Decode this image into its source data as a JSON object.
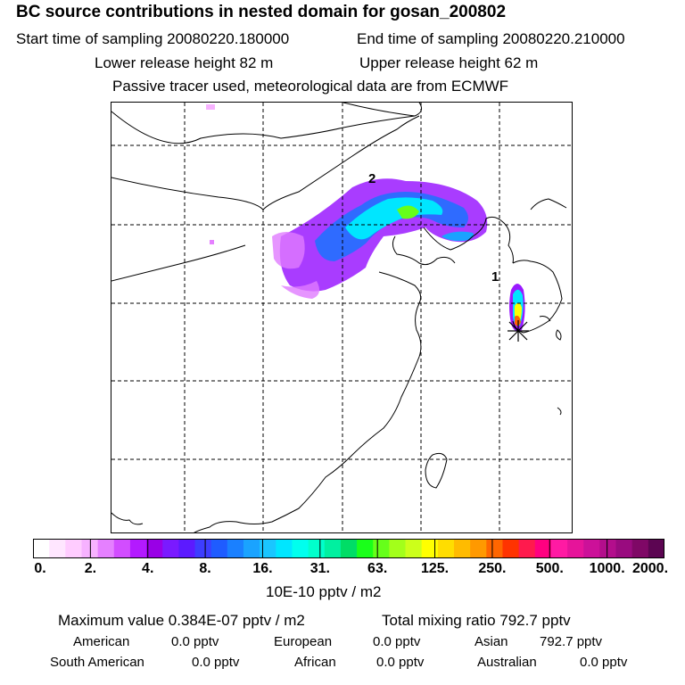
{
  "header": {
    "title": "BC  source contributions in nested domain for gosan_200802",
    "start_time": "Start time of sampling 20080220.180000",
    "end_time": "End time of sampling 20080220.210000",
    "lower_height": "Lower release height   82 m",
    "upper_height": "Upper release height   62 m",
    "note": "Passive tracer used, meteorological data are from ECMWF"
  },
  "map": {
    "labels": [
      "1",
      "2"
    ]
  },
  "colorbar": {
    "ticks": [
      "0.",
      "2.",
      "4.",
      "8.",
      "16.",
      "31.",
      "63.",
      "125.",
      "250.",
      "500.",
      "1000.",
      "2000."
    ],
    "unit": "10E-10 pptv / m2",
    "colors": [
      "#ffffff",
      "#ffe6ff",
      "#ffccff",
      "#f7b2ff",
      "#e580ff",
      "#d24dff",
      "#b31aff",
      "#9900e6",
      "#7a1aff",
      "#5c1aff",
      "#3d3dff",
      "#1f5cff",
      "#1a80ff",
      "#1aa3ff",
      "#1ac6ff",
      "#00e6ff",
      "#00ffee",
      "#00ffcc",
      "#00f0a0",
      "#00dd66",
      "#1aff1a",
      "#66ff1a",
      "#a3ff1a",
      "#ccff1a",
      "#ffff00",
      "#ffdd00",
      "#ffbb00",
      "#ff9900",
      "#ff6600",
      "#ff3300",
      "#ff1a4d",
      "#ff0080",
      "#ff1aa3",
      "#e6149a",
      "#cc1199",
      "#b30e8c",
      "#990b7f",
      "#7f0866",
      "#5c0552"
    ]
  },
  "stats": {
    "max_value": "Maximum value  0.384E-07 pptv / m2",
    "total_mixing": "Total mixing ratio      792.7 pptv",
    "american": "American",
    "american_val": "0.0 pptv",
    "european": "European",
    "european_val": "0.0 pptv",
    "asian": "Asian",
    "asian_val": "792.7 pptv",
    "south_american": "South American",
    "south_american_val": "0.0 pptv",
    "african": "African",
    "african_val": "0.0 pptv",
    "australian": "Australian",
    "australian_val": "0.0 pptv"
  }
}
